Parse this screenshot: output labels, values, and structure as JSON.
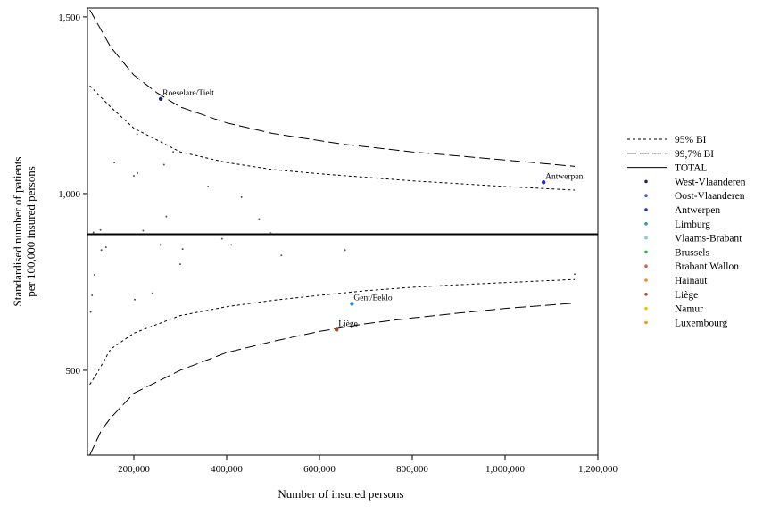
{
  "chart_data": {
    "type": "scatter",
    "title": "",
    "xlabel": "Number of insured persons",
    "ylabel_lines": [
      "Standardised number of patients",
      "per 100,000 insured persons"
    ],
    "xlim": [
      100000,
      1200000
    ],
    "ylim": [
      260,
      1525
    ],
    "x_ticks": [
      200000,
      400000,
      600000,
      800000,
      1000000,
      1200000
    ],
    "x_tick_labels": [
      "200,000",
      "400,000",
      "600,000",
      "800,000",
      "1,000,000",
      "1,200,000"
    ],
    "y_ticks": [
      500,
      1000,
      1500
    ],
    "y_tick_labels": [
      "500",
      "1,000",
      "1,500"
    ],
    "total_value": 885,
    "legend": [
      {
        "label": "95% BI",
        "style": "dotted"
      },
      {
        "label": "99,7% BI",
        "style": "dashed"
      },
      {
        "label": "TOTAL",
        "style": "solid"
      },
      {
        "label": "West-Vlaanderen",
        "color": "#1a237e",
        "style": "dot"
      },
      {
        "label": "Oost-Vlaanderen",
        "color": "#3f66d9",
        "style": "dot"
      },
      {
        "label": "Antwerpen",
        "color": "#1f2fc4",
        "style": "dot"
      },
      {
        "label": "Limburg",
        "color": "#2e8fd6",
        "style": "dot"
      },
      {
        "label": "Vlaams-Brabant",
        "color": "#7ec8e8",
        "style": "dot"
      },
      {
        "label": "Brussels",
        "color": "#33b44a",
        "style": "dot"
      },
      {
        "label": "Brabant Wallon",
        "color": "#d3683a",
        "style": "dot"
      },
      {
        "label": "Hainaut",
        "color": "#f08a24",
        "style": "dot"
      },
      {
        "label": "Liège",
        "color": "#a34a2e",
        "style": "dot"
      },
      {
        "label": "Namur",
        "color": "#f2c400",
        "style": "dot"
      },
      {
        "label": "Luxembourg",
        "color": "#e89a2c",
        "style": "dot"
      }
    ],
    "highlighted_points": [
      {
        "label": "Roeselare/Tielt",
        "x": 258000,
        "y": 1268,
        "color": "#1a237e"
      },
      {
        "label": "Antwerpen",
        "x": 1083000,
        "y": 1032,
        "color": "#1f2fc4"
      },
      {
        "label": "Gent/Eeklo",
        "x": 670000,
        "y": 688,
        "color": "#2e8fd6"
      },
      {
        "label": "Liège",
        "x": 637000,
        "y": 615,
        "color": "#a34a2e"
      }
    ],
    "other_points": [
      [
        107000,
        665
      ],
      [
        110000,
        712
      ],
      [
        113000,
        890
      ],
      [
        115000,
        770
      ],
      [
        128000,
        897
      ],
      [
        130000,
        840
      ],
      [
        140000,
        848
      ],
      [
        158000,
        1088
      ],
      [
        200000,
        1050
      ],
      [
        202000,
        700
      ],
      [
        207000,
        1168
      ],
      [
        208000,
        1058
      ],
      [
        220000,
        895
      ],
      [
        240000,
        718
      ],
      [
        257000,
        855
      ],
      [
        265000,
        1082
      ],
      [
        270000,
        935
      ],
      [
        285000,
        1118
      ],
      [
        300000,
        800
      ],
      [
        305000,
        843
      ],
      [
        360000,
        1020
      ],
      [
        390000,
        872
      ],
      [
        410000,
        855
      ],
      [
        432000,
        990
      ],
      [
        470000,
        928
      ],
      [
        495000,
        888
      ],
      [
        518000,
        825
      ],
      [
        655000,
        840
      ],
      [
        1150000,
        772
      ]
    ],
    "total_line": "TOTAL",
    "ci_95_upper": [
      [
        105000,
        1305
      ],
      [
        150000,
        1245
      ],
      [
        200000,
        1185
      ],
      [
        300000,
        1118
      ],
      [
        400000,
        1088
      ],
      [
        500000,
        1068
      ],
      [
        600000,
        1056
      ],
      [
        700000,
        1046
      ],
      [
        800000,
        1036
      ],
      [
        900000,
        1028
      ],
      [
        1000000,
        1020
      ],
      [
        1150000,
        1010
      ]
    ],
    "ci_95_lower": [
      [
        105000,
        460
      ],
      [
        120000,
        490
      ],
      [
        150000,
        560
      ],
      [
        200000,
        605
      ],
      [
        300000,
        655
      ],
      [
        400000,
        680
      ],
      [
        500000,
        698
      ],
      [
        600000,
        712
      ],
      [
        700000,
        725
      ],
      [
        800000,
        735
      ],
      [
        900000,
        742
      ],
      [
        1000000,
        748
      ],
      [
        1150000,
        757
      ]
    ],
    "ci_997_upper": [
      [
        105000,
        1520
      ],
      [
        150000,
        1415
      ],
      [
        200000,
        1335
      ],
      [
        250000,
        1285
      ],
      [
        300000,
        1245
      ],
      [
        400000,
        1200
      ],
      [
        500000,
        1170
      ],
      [
        650000,
        1140
      ],
      [
        800000,
        1118
      ],
      [
        1000000,
        1095
      ],
      [
        1150000,
        1077
      ]
    ],
    "ci_997_lower": [
      [
        105000,
        260
      ],
      [
        130000,
        330
      ],
      [
        150000,
        365
      ],
      [
        200000,
        435
      ],
      [
        300000,
        500
      ],
      [
        400000,
        550
      ],
      [
        500000,
        582
      ],
      [
        600000,
        610
      ],
      [
        700000,
        632
      ],
      [
        800000,
        648
      ],
      [
        900000,
        662
      ],
      [
        1000000,
        675
      ],
      [
        1150000,
        690
      ]
    ]
  }
}
